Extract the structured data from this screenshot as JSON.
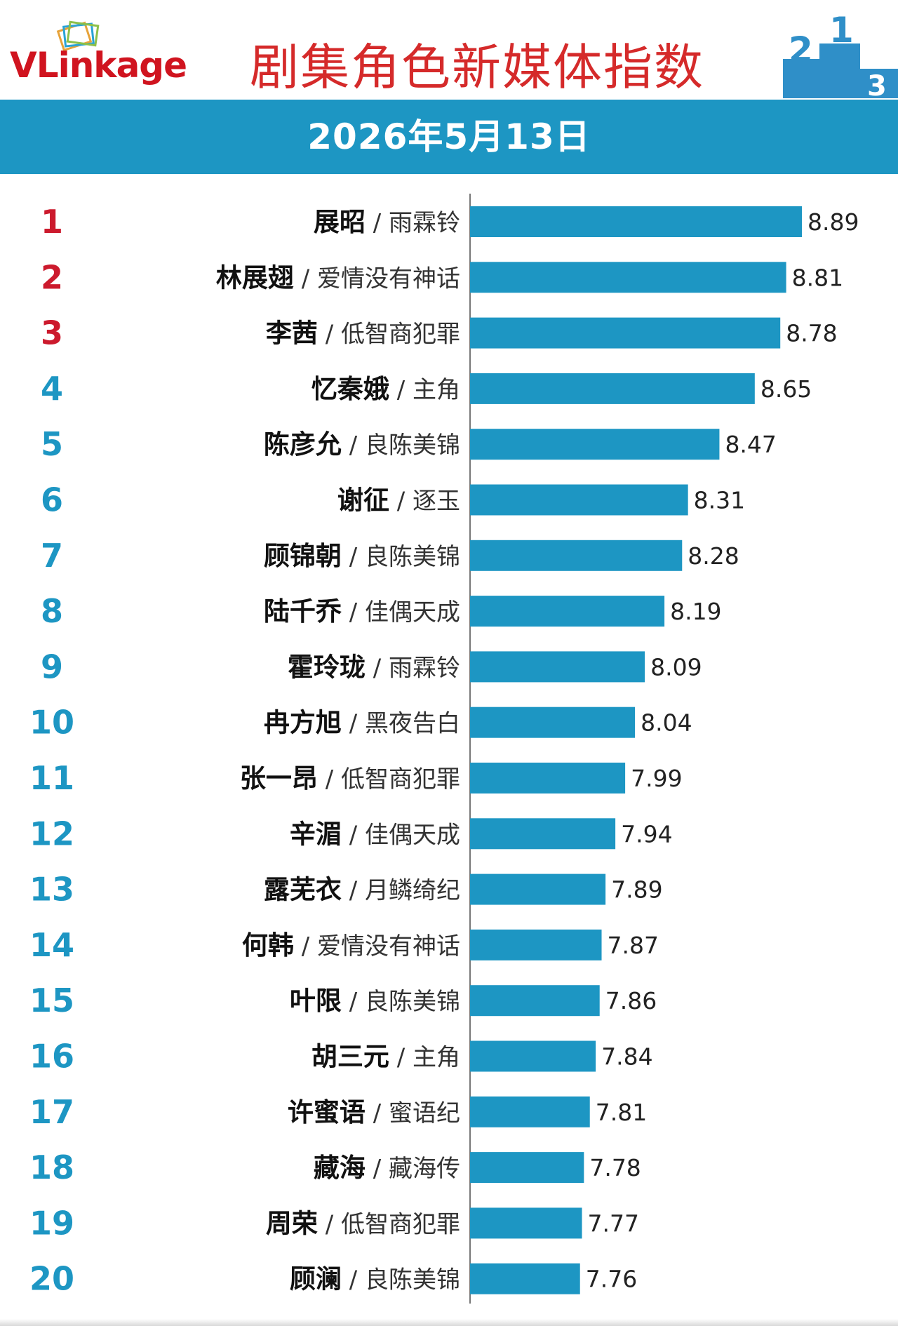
{
  "logo": {
    "text_v": "V",
    "text_link": "Link",
    "text_age": "age"
  },
  "header": {
    "title": "剧集角色新媒体指数",
    "date": "2026年5月13日",
    "podium_numbers": [
      "2",
      "1",
      "3"
    ]
  },
  "colors": {
    "title_red": "#d52a2a",
    "band_blue": "#1d96c3",
    "bar_blue": "#1d96c3",
    "rank_top3": "#cc1a2d",
    "rank_other": "#1d96c3",
    "podium_blue": "#2f8fc8"
  },
  "chart_data": {
    "type": "bar",
    "orientation": "horizontal",
    "value_separator": " / ",
    "xlim": [
      7.2,
      9.0
    ],
    "ranks": [
      "1",
      "2",
      "3",
      "4",
      "5",
      "6",
      "7",
      "8",
      "9",
      "10",
      "11",
      "12",
      "13",
      "14",
      "15",
      "16",
      "17",
      "18",
      "19",
      "20"
    ],
    "categories": [
      "展昭",
      "林展翅",
      "李茜",
      "忆秦娥",
      "陈彦允",
      "谢征",
      "顾锦朝",
      "陆千乔",
      "霍玲珑",
      "冉方旭",
      "张一昂",
      "辛湄",
      "露芜衣",
      "何韩",
      "叶限",
      "胡三元",
      "许蜜语",
      "藏海",
      "周荣",
      "顾澜"
    ],
    "dramas": [
      "雨霖铃",
      "爱情没有神话",
      "低智商犯罪",
      "主角",
      "良陈美锦",
      "逐玉",
      "良陈美锦",
      "佳偶天成",
      "雨霖铃",
      "黑夜告白",
      "低智商犯罪",
      "佳偶天成",
      "月鳞绮纪",
      "爱情没有神话",
      "良陈美锦",
      "主角",
      "蜜语纪",
      "藏海传",
      "低智商犯罪",
      "良陈美锦"
    ],
    "values": [
      8.89,
      8.81,
      8.78,
      8.65,
      8.47,
      8.31,
      8.28,
      8.19,
      8.09,
      8.04,
      7.99,
      7.94,
      7.89,
      7.87,
      7.86,
      7.84,
      7.81,
      7.78,
      7.77,
      7.76
    ],
    "value_labels": [
      "8.89",
      "8.81",
      "8.78",
      "8.65",
      "8.47",
      "8.31",
      "8.28",
      "8.19",
      "8.09",
      "8.04",
      "7.99",
      "7.94",
      "7.89",
      "7.87",
      "7.86",
      "7.84",
      "7.81",
      "7.78",
      "7.77",
      "7.76"
    ],
    "grid": false,
    "legend": "none"
  }
}
